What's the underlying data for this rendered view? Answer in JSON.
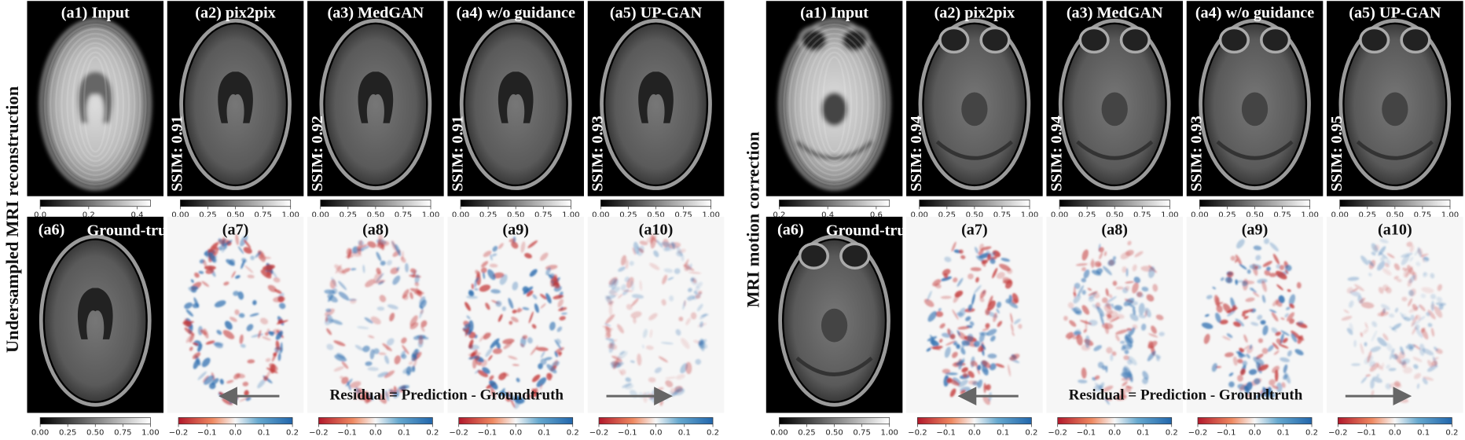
{
  "panels": [
    {
      "side_label": "Undersampled MRI reconstruction",
      "top": [
        {
          "title": "(a1) Input",
          "colorbar_ticks": [
            "0.0",
            "0.2",
            "0.4"
          ]
        },
        {
          "title": "(a2) pix2pix",
          "ssim": "SSIM: 0.91",
          "colorbar_ticks": [
            "0.00",
            "0.25",
            "0.50",
            "0.75",
            "1.00"
          ]
        },
        {
          "title": "(a3) MedGAN",
          "ssim": "SSIM: 0.92",
          "colorbar_ticks": [
            "0.00",
            "0.25",
            "0.50",
            "0.75",
            "1.00"
          ]
        },
        {
          "title": "(a4) w/o guidance",
          "ssim": "SSIM: 0.91",
          "colorbar_ticks": [
            "0.00",
            "0.25",
            "0.50",
            "0.75",
            "1.00"
          ]
        },
        {
          "title": "(a5) UP-GAN",
          "ssim": "SSIM: 0.93",
          "colorbar_ticks": [
            "0.00",
            "0.25",
            "0.50",
            "0.75",
            "1.00"
          ]
        }
      ],
      "bottom": [
        {
          "title": "(a6)",
          "subtitle": "Ground-truth",
          "colorbar_ticks": [
            "0.00",
            "0.25",
            "0.50",
            "0.75",
            "1.00"
          ]
        },
        {
          "title": "(a7)",
          "colorbar_ticks": [
            "−0.2",
            "−0.1",
            "0.0",
            "0.1",
            "0.2"
          ]
        },
        {
          "title": "(a8)",
          "colorbar_ticks": [
            "−0.2",
            "−0.1",
            "0.0",
            "0.1",
            "0.2"
          ]
        },
        {
          "title": "(a9)",
          "colorbar_ticks": [
            "−0.2",
            "−0.1",
            "0.0",
            "0.1",
            "0.2"
          ]
        },
        {
          "title": "(a10)",
          "colorbar_ticks": [
            "−0.2",
            "−0.1",
            "0.0",
            "0.1",
            "0.2"
          ]
        }
      ],
      "residual_note": "Residual = Prediction - Groundtruth"
    },
    {
      "side_label": "MRI motion correction",
      "top": [
        {
          "title": "(a1) Input",
          "colorbar_ticks": [
            "0.2",
            "0.4",
            "0.6"
          ]
        },
        {
          "title": "(a2) pix2pix",
          "ssim": "SSIM: 0.94",
          "colorbar_ticks": [
            "0.00",
            "0.25",
            "0.50",
            "0.75",
            "1.00"
          ]
        },
        {
          "title": "(a3) MedGAN",
          "ssim": "SSIM: 0.94",
          "colorbar_ticks": [
            "0.00",
            "0.25",
            "0.50",
            "0.75",
            "1.00"
          ]
        },
        {
          "title": "(a4) w/o guidance",
          "ssim": "SSIM: 0.93",
          "colorbar_ticks": [
            "0.00",
            "0.25",
            "0.50",
            "0.75",
            "1.00"
          ]
        },
        {
          "title": "(a5) UP-GAN",
          "ssim": "SSIM: 0.95",
          "colorbar_ticks": [
            "0.00",
            "0.25",
            "0.50",
            "0.75",
            "1.00"
          ]
        }
      ],
      "bottom": [
        {
          "title": "(a6)",
          "subtitle": "Ground-truth",
          "colorbar_ticks": [
            "0.00",
            "0.25",
            "0.50",
            "0.75",
            "1.00"
          ]
        },
        {
          "title": "(a7)",
          "colorbar_ticks": [
            "−0.2",
            "−0.1",
            "0.0",
            "0.1",
            "0.2"
          ]
        },
        {
          "title": "(a8)",
          "colorbar_ticks": [
            "−0.2",
            "−0.1",
            "0.0",
            "0.1",
            "0.2"
          ]
        },
        {
          "title": "(a9)",
          "colorbar_ticks": [
            "−0.2",
            "−0.1",
            "0.0",
            "0.1",
            "0.2"
          ]
        },
        {
          "title": "(a10)",
          "colorbar_ticks": [
            "−0.2",
            "−0.1",
            "0.0",
            "0.1",
            "0.2"
          ]
        }
      ],
      "residual_note": "Residual = Prediction - Groundtruth"
    }
  ]
}
